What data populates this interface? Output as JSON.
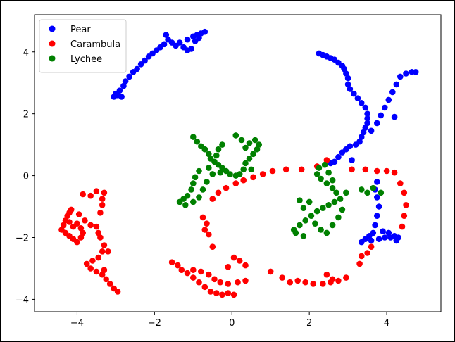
{
  "chart_data": {
    "type": "scatter",
    "xlim": [
      -5.1,
      5.4
    ],
    "ylim": [
      -4.4,
      5.2
    ],
    "x_ticks": [
      -4,
      -2,
      0,
      2,
      4
    ],
    "y_ticks": [
      -4,
      -2,
      0,
      2,
      4
    ],
    "x_tick_labels": [
      "−4",
      "−2",
      "0",
      "2",
      "4"
    ],
    "y_tick_labels": [
      "−4",
      "−2",
      "0",
      "2",
      "4"
    ],
    "grid": false,
    "legend": "top-left",
    "series": [
      {
        "name": "Pear",
        "color": "#0000ff",
        "points": [
          [
            -3.05,
            2.55
          ],
          [
            -3.0,
            2.65
          ],
          [
            -2.9,
            2.75
          ],
          [
            -2.8,
            2.9
          ],
          [
            -2.75,
            3.05
          ],
          [
            -2.65,
            3.2
          ],
          [
            -2.55,
            3.35
          ],
          [
            -2.45,
            3.45
          ],
          [
            -2.35,
            3.6
          ],
          [
            -2.25,
            3.72
          ],
          [
            -2.15,
            3.85
          ],
          [
            -2.05,
            3.95
          ],
          [
            -1.95,
            4.05
          ],
          [
            -1.85,
            4.15
          ],
          [
            -1.75,
            4.25
          ],
          [
            -1.65,
            4.4
          ],
          [
            -1.7,
            4.55
          ],
          [
            -1.55,
            4.3
          ],
          [
            -1.45,
            4.2
          ],
          [
            -1.35,
            4.3
          ],
          [
            -1.25,
            4.15
          ],
          [
            -1.15,
            4.05
          ],
          [
            -1.05,
            4.1
          ],
          [
            -1.15,
            4.4
          ],
          [
            -1.0,
            4.5
          ],
          [
            -0.9,
            4.55
          ],
          [
            -0.8,
            4.6
          ],
          [
            -0.7,
            4.65
          ],
          [
            -0.85,
            4.45
          ],
          [
            -0.95,
            4.35
          ],
          [
            -2.85,
            2.55
          ],
          [
            -2.95,
            2.6
          ],
          [
            2.25,
            3.95
          ],
          [
            2.35,
            3.9
          ],
          [
            2.45,
            3.85
          ],
          [
            2.55,
            3.8
          ],
          [
            2.65,
            3.75
          ],
          [
            2.75,
            3.65
          ],
          [
            2.85,
            3.55
          ],
          [
            2.9,
            3.45
          ],
          [
            2.95,
            3.3
          ],
          [
            3.0,
            3.15
          ],
          [
            3.0,
            2.95
          ],
          [
            3.05,
            2.8
          ],
          [
            3.15,
            2.65
          ],
          [
            3.25,
            2.5
          ],
          [
            3.35,
            2.35
          ],
          [
            3.45,
            2.2
          ],
          [
            3.5,
            2.0
          ],
          [
            3.5,
            1.85
          ],
          [
            3.5,
            1.7
          ],
          [
            3.45,
            1.55
          ],
          [
            3.4,
            1.4
          ],
          [
            3.35,
            1.25
          ],
          [
            3.3,
            1.1
          ],
          [
            3.2,
            1.0
          ],
          [
            3.05,
            0.95
          ],
          [
            2.95,
            0.85
          ],
          [
            2.85,
            0.75
          ],
          [
            2.75,
            0.6
          ],
          [
            2.65,
            0.45
          ],
          [
            2.55,
            0.4
          ],
          [
            3.6,
            1.45
          ],
          [
            3.75,
            1.7
          ],
          [
            3.85,
            1.95
          ],
          [
            3.95,
            2.2
          ],
          [
            4.05,
            2.45
          ],
          [
            4.15,
            2.7
          ],
          [
            4.25,
            2.95
          ],
          [
            4.35,
            3.2
          ],
          [
            4.5,
            3.3
          ],
          [
            4.65,
            3.35
          ],
          [
            4.75,
            3.35
          ],
          [
            4.2,
            1.9
          ],
          [
            3.1,
            0.5
          ],
          [
            3.75,
            -0.2
          ],
          [
            3.7,
            -0.45
          ],
          [
            3.75,
            -0.7
          ],
          [
            3.8,
            -1.0
          ],
          [
            3.75,
            -1.3
          ],
          [
            3.7,
            -1.6
          ],
          [
            3.65,
            -1.85
          ],
          [
            3.55,
            -1.95
          ],
          [
            3.45,
            -2.05
          ],
          [
            3.35,
            -2.15
          ],
          [
            3.6,
            -2.1
          ],
          [
            3.8,
            -2.05
          ],
          [
            3.95,
            -2.0
          ],
          [
            4.1,
            -2.0
          ],
          [
            4.2,
            -1.95
          ],
          [
            4.3,
            -2.0
          ],
          [
            4.25,
            -2.1
          ],
          [
            4.05,
            -1.85
          ],
          [
            3.9,
            -1.8
          ]
        ]
      },
      {
        "name": "Carambula",
        "color": "#ff0000",
        "points": [
          [
            -4.4,
            -1.75
          ],
          [
            -4.35,
            -1.6
          ],
          [
            -4.3,
            -1.45
          ],
          [
            -4.25,
            -1.3
          ],
          [
            -4.2,
            -1.2
          ],
          [
            -4.15,
            -1.1
          ],
          [
            -4.3,
            -1.85
          ],
          [
            -4.2,
            -1.95
          ],
          [
            -4.1,
            -2.05
          ],
          [
            -4.0,
            -2.15
          ],
          [
            -3.9,
            -2.0
          ],
          [
            -3.85,
            -1.85
          ],
          [
            -3.9,
            -1.7
          ],
          [
            -4.0,
            -1.55
          ],
          [
            -4.1,
            -1.65
          ],
          [
            -4.2,
            -1.5
          ],
          [
            -3.95,
            -1.25
          ],
          [
            -3.8,
            -1.45
          ],
          [
            -3.65,
            -1.6
          ],
          [
            -3.5,
            -1.65
          ],
          [
            -3.45,
            -1.85
          ],
          [
            -3.4,
            -2.0
          ],
          [
            -3.4,
            -1.2
          ],
          [
            -3.35,
            -0.95
          ],
          [
            -3.35,
            -0.75
          ],
          [
            -3.3,
            -0.55
          ],
          [
            -3.5,
            -0.5
          ],
          [
            -3.65,
            -0.65
          ],
          [
            -3.85,
            -0.6
          ],
          [
            -3.3,
            -2.25
          ],
          [
            -3.35,
            -2.45
          ],
          [
            -3.45,
            -2.65
          ],
          [
            -3.6,
            -2.75
          ],
          [
            -3.75,
            -2.85
          ],
          [
            -3.65,
            -3.0
          ],
          [
            -3.5,
            -3.1
          ],
          [
            -3.35,
            -3.2
          ],
          [
            -3.25,
            -3.35
          ],
          [
            -3.15,
            -3.5
          ],
          [
            -3.05,
            -3.65
          ],
          [
            -2.95,
            -3.75
          ],
          [
            -3.2,
            -2.45
          ],
          [
            -3.3,
            -3.05
          ],
          [
            -1.55,
            -2.8
          ],
          [
            -1.4,
            -2.9
          ],
          [
            -1.3,
            -3.05
          ],
          [
            -1.15,
            -3.15
          ],
          [
            -1.0,
            -3.3
          ],
          [
            -0.85,
            -3.45
          ],
          [
            -0.7,
            -3.6
          ],
          [
            -0.55,
            -3.75
          ],
          [
            -0.4,
            -3.8
          ],
          [
            -0.25,
            -3.85
          ],
          [
            -0.1,
            -3.8
          ],
          [
            0.05,
            -3.85
          ],
          [
            -1.0,
            -3.05
          ],
          [
            -0.8,
            -3.1
          ],
          [
            -0.6,
            -3.2
          ],
          [
            -0.45,
            -3.35
          ],
          [
            -0.3,
            -3.45
          ],
          [
            -0.1,
            -3.5
          ],
          [
            0.15,
            -3.45
          ],
          [
            0.35,
            -3.4
          ],
          [
            0.05,
            -2.65
          ],
          [
            0.2,
            -2.75
          ],
          [
            0.35,
            -2.9
          ],
          [
            -0.1,
            -2.95
          ],
          [
            -0.5,
            -2.3
          ],
          [
            -0.75,
            -1.35
          ],
          [
            -0.65,
            -1.55
          ],
          [
            -0.7,
            -1.75
          ],
          [
            -0.6,
            -1.9
          ],
          [
            -0.5,
            -0.75
          ],
          [
            -0.35,
            -0.55
          ],
          [
            -0.15,
            -0.4
          ],
          [
            0.1,
            -0.25
          ],
          [
            0.3,
            -0.15
          ],
          [
            0.55,
            -0.05
          ],
          [
            0.8,
            0.05
          ],
          [
            1.05,
            0.15
          ],
          [
            1.4,
            0.2
          ],
          [
            1.8,
            0.2
          ],
          [
            2.2,
            0.3
          ],
          [
            2.45,
            0.5
          ],
          [
            1.0,
            -3.1
          ],
          [
            1.3,
            -3.3
          ],
          [
            1.5,
            -3.45
          ],
          [
            1.7,
            -3.4
          ],
          [
            1.9,
            -3.45
          ],
          [
            2.1,
            -3.5
          ],
          [
            2.35,
            -3.5
          ],
          [
            2.55,
            -3.45
          ],
          [
            2.75,
            -3.4
          ],
          [
            2.95,
            -3.3
          ],
          [
            2.45,
            -3.2
          ],
          [
            2.6,
            -3.35
          ],
          [
            3.3,
            -2.85
          ],
          [
            3.35,
            -2.6
          ],
          [
            3.5,
            -2.5
          ],
          [
            3.6,
            -2.3
          ],
          [
            3.1,
            0.2
          ],
          [
            3.45,
            0.2
          ],
          [
            3.75,
            0.15
          ],
          [
            4.0,
            0.15
          ],
          [
            4.2,
            0.1
          ],
          [
            4.35,
            -0.25
          ],
          [
            4.45,
            -0.55
          ],
          [
            4.5,
            -0.95
          ],
          [
            4.45,
            -1.3
          ],
          [
            4.4,
            -1.65
          ]
        ]
      },
      {
        "name": "Lychee",
        "color": "#008000",
        "points": [
          [
            -1.0,
            1.25
          ],
          [
            -0.9,
            1.1
          ],
          [
            -0.8,
            0.95
          ],
          [
            -0.7,
            0.85
          ],
          [
            -0.6,
            0.7
          ],
          [
            -0.55,
            0.55
          ],
          [
            -0.45,
            0.45
          ],
          [
            -0.35,
            0.35
          ],
          [
            -0.25,
            0.25
          ],
          [
            -0.15,
            0.15
          ],
          [
            -0.05,
            0.05
          ],
          [
            0.1,
            0.0
          ],
          [
            0.2,
            0.05
          ],
          [
            0.3,
            0.2
          ],
          [
            0.35,
            0.4
          ],
          [
            0.45,
            0.55
          ],
          [
            0.55,
            0.7
          ],
          [
            0.65,
            0.85
          ],
          [
            0.7,
            1.0
          ],
          [
            0.6,
            1.15
          ],
          [
            0.45,
            1.05
          ],
          [
            0.35,
            0.9
          ],
          [
            0.25,
            1.15
          ],
          [
            0.1,
            1.3
          ],
          [
            -0.35,
            0.85
          ],
          [
            -0.25,
            1.0
          ],
          [
            -0.4,
            0.65
          ],
          [
            -0.85,
            0.15
          ],
          [
            -0.95,
            -0.05
          ],
          [
            -1.0,
            -0.25
          ],
          [
            -1.05,
            -0.45
          ],
          [
            -1.15,
            -0.65
          ],
          [
            -1.25,
            -0.75
          ],
          [
            -1.35,
            -0.85
          ],
          [
            -1.2,
            -0.95
          ],
          [
            -1.0,
            -0.85
          ],
          [
            -0.85,
            -0.7
          ],
          [
            -0.75,
            -0.45
          ],
          [
            -0.65,
            -0.2
          ],
          [
            -0.5,
            0.05
          ],
          [
            -0.3,
            0.1
          ],
          [
            -0.6,
            0.25
          ],
          [
            0.5,
            0.2
          ],
          [
            1.6,
            -1.75
          ],
          [
            1.75,
            -1.6
          ],
          [
            1.9,
            -1.45
          ],
          [
            2.05,
            -1.3
          ],
          [
            2.2,
            -1.15
          ],
          [
            2.35,
            -1.05
          ],
          [
            2.5,
            -0.95
          ],
          [
            2.65,
            -0.85
          ],
          [
            2.8,
            -0.75
          ],
          [
            2.95,
            -0.55
          ],
          [
            2.6,
            -0.4
          ],
          [
            2.45,
            -0.25
          ],
          [
            2.3,
            -0.1
          ],
          [
            2.2,
            0.05
          ],
          [
            2.25,
            0.25
          ],
          [
            2.4,
            0.35
          ],
          [
            2.5,
            0.1
          ],
          [
            2.6,
            -0.15
          ],
          [
            2.7,
            -0.55
          ],
          [
            1.85,
            -1.05
          ],
          [
            2.0,
            -0.85
          ],
          [
            2.15,
            -1.55
          ],
          [
            2.3,
            -1.75
          ],
          [
            2.45,
            -1.85
          ],
          [
            2.6,
            -1.6
          ],
          [
            2.75,
            -1.35
          ],
          [
            2.85,
            -1.1
          ],
          [
            1.75,
            -0.8
          ],
          [
            1.65,
            -1.85
          ],
          [
            1.85,
            -1.95
          ],
          [
            3.35,
            -0.45
          ],
          [
            3.5,
            -0.55
          ],
          [
            3.65,
            -0.4
          ],
          [
            3.85,
            -0.55
          ]
        ]
      }
    ]
  }
}
